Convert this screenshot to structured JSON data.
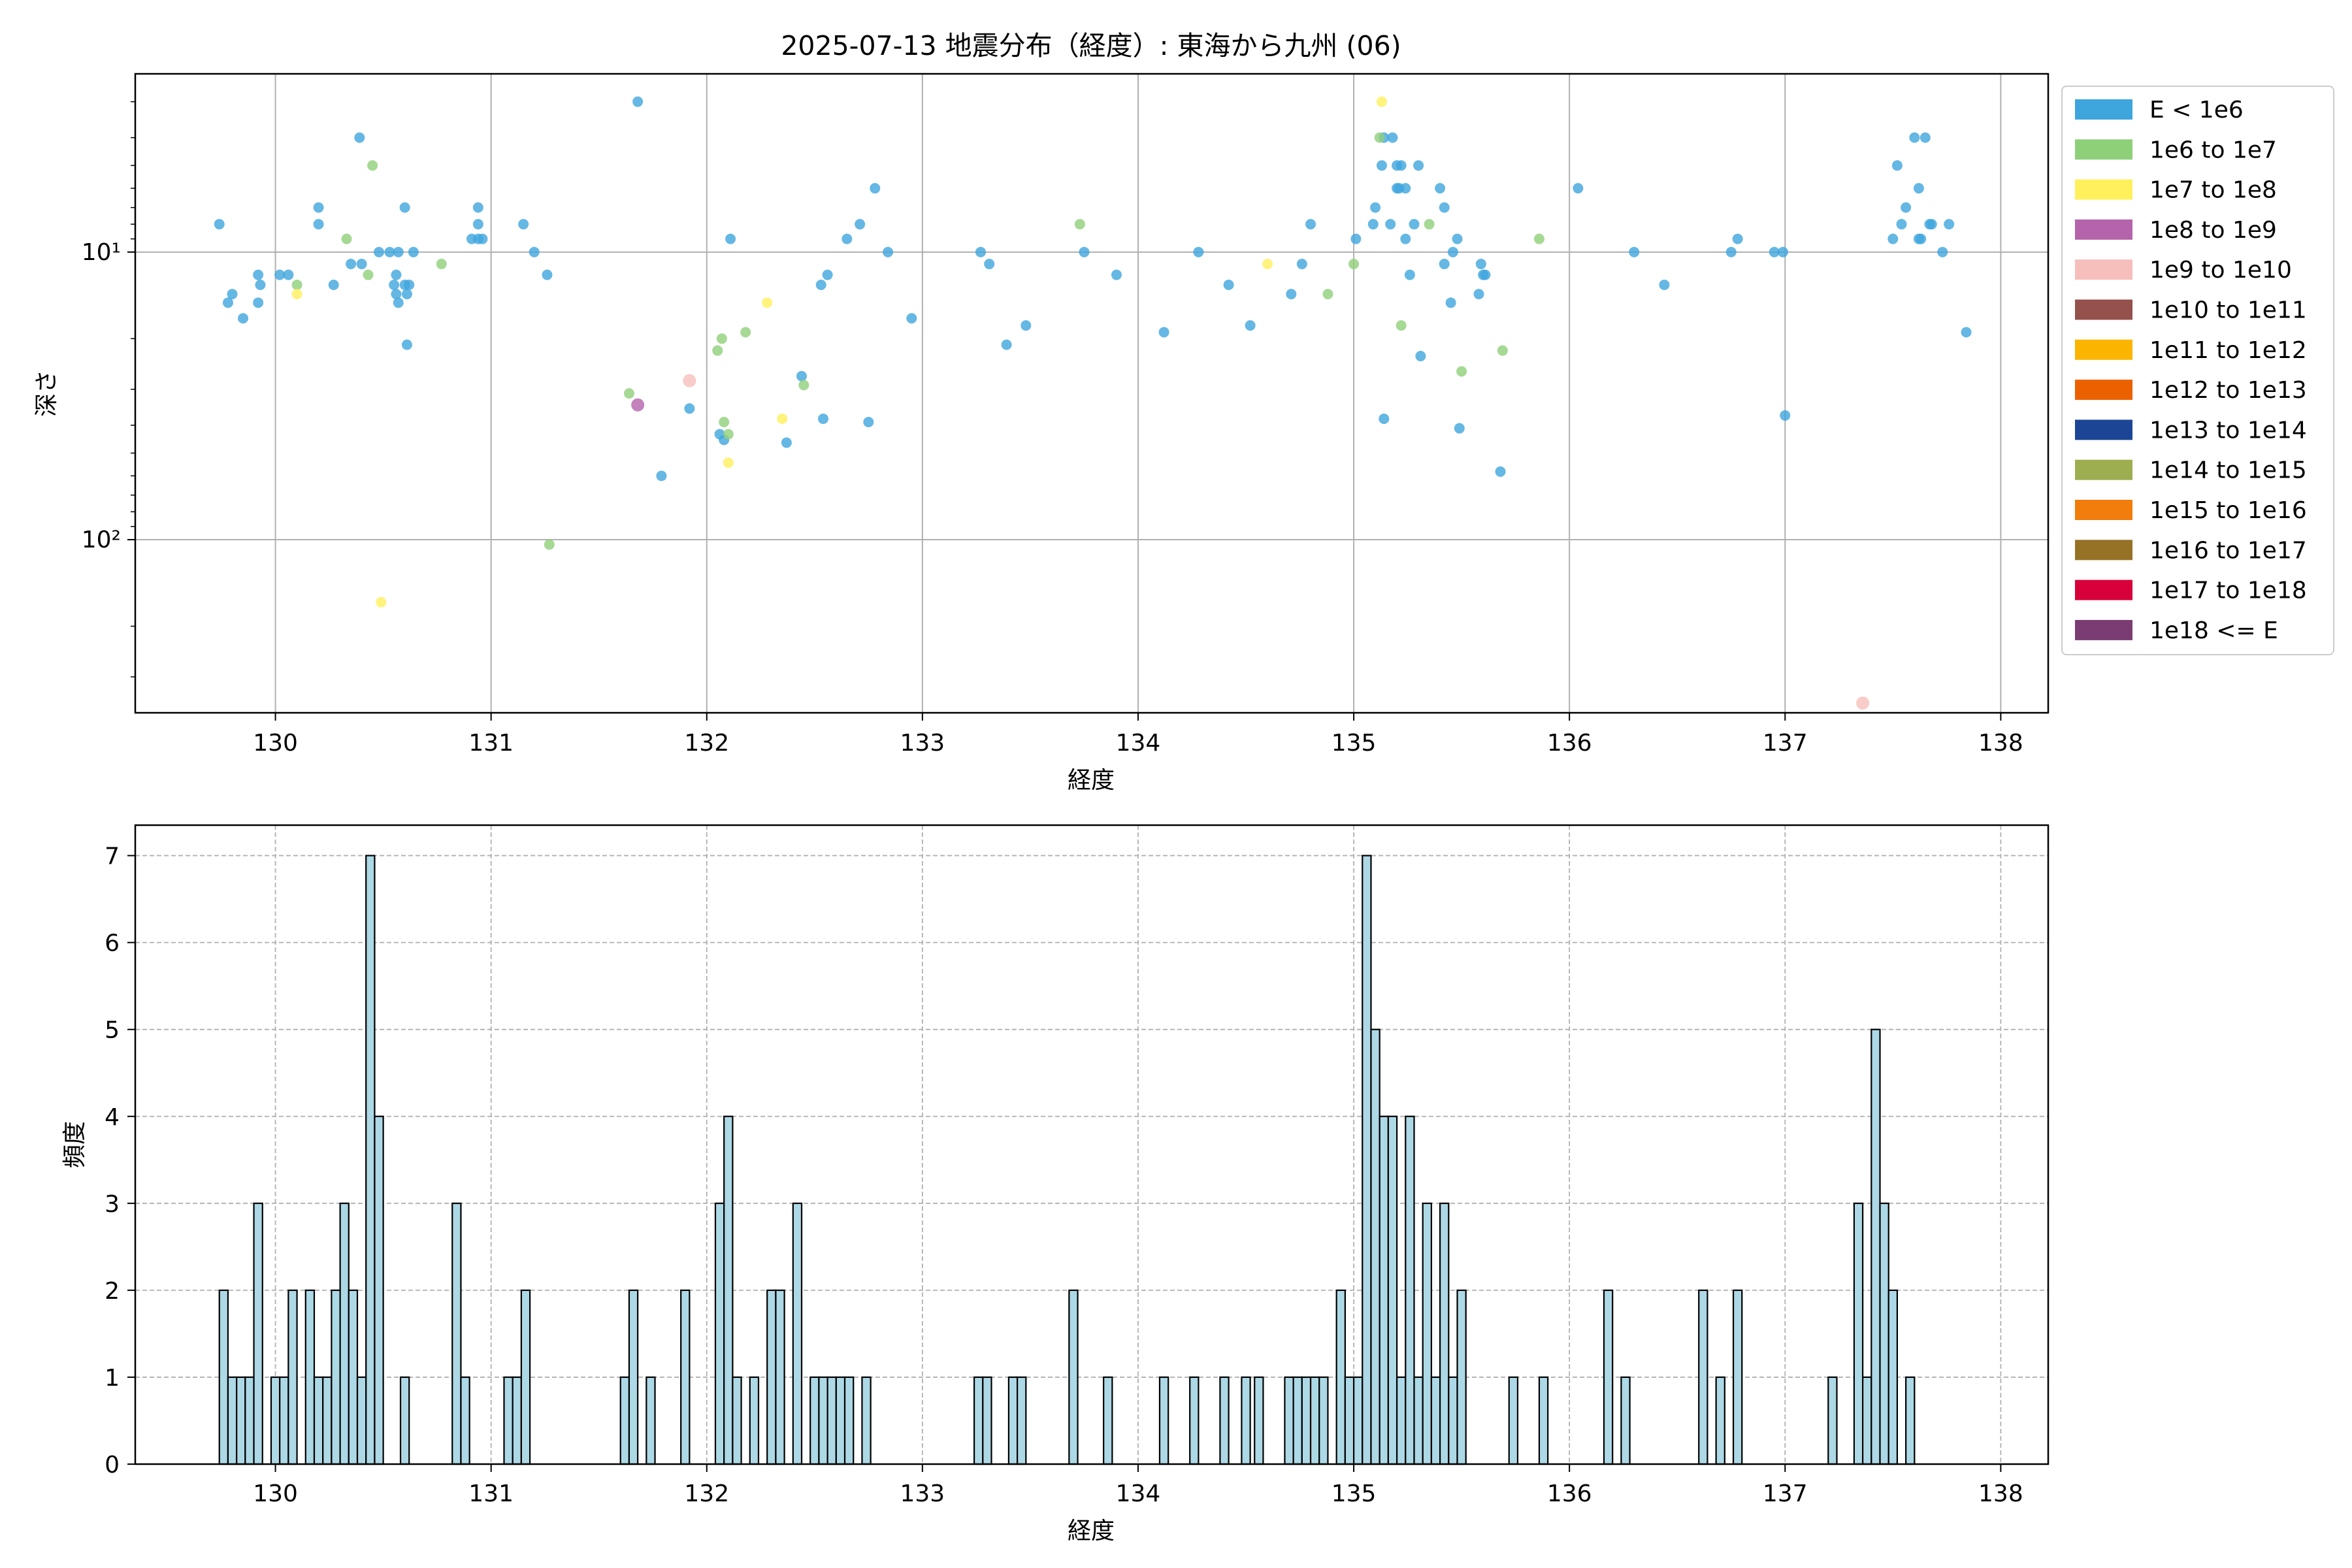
{
  "title": "2025-07-13 地震分布（経度）: 東海から九州 (06)",
  "legend": {
    "placement": "outside-right",
    "entries": [
      {
        "label": "E < 1e6",
        "color": "#3ea5dd"
      },
      {
        "label": "1e6 to 1e7",
        "color": "#8ecf79"
      },
      {
        "label": "1e7 to 1e8",
        "color": "#fff05c"
      },
      {
        "label": "1e8 to 1e9",
        "color": "#b564ab"
      },
      {
        "label": "1e9 to 1e10",
        "color": "#f6bfbc"
      },
      {
        "label": "1e10 to 1e11",
        "color": "#95514b"
      },
      {
        "label": "1e11 to 1e12",
        "color": "#fbb500"
      },
      {
        "label": "1e12 to 1e13",
        "color": "#eb6100"
      },
      {
        "label": "1e13 to 1e14",
        "color": "#1c4595"
      },
      {
        "label": "1e14 to 1e15",
        "color": "#9cae4f"
      },
      {
        "label": "1e15 to 1e16",
        "color": "#f07d0c"
      },
      {
        "label": "1e16 to 1e17",
        "color": "#967226"
      },
      {
        "label": "1e17 to 1e18",
        "color": "#d7003a"
      },
      {
        "label": "1e18 <= E",
        "color": "#7a3c72"
      }
    ]
  },
  "chart_data": [
    {
      "type": "scatter",
      "xlabel": "経度",
      "ylabel": "深さ",
      "xlim": [
        129.35,
        138.22
      ],
      "ylim": [
        400,
        2.4
      ],
      "yscale": "log-inverted",
      "grid": true,
      "xticks": [
        130,
        131,
        132,
        133,
        134,
        135,
        136,
        137,
        138
      ],
      "yticks": [
        {
          "value": 10,
          "label": "10¹"
        },
        {
          "value": 100,
          "label": "10²"
        }
      ],
      "series": [
        {
          "class": 0,
          "points": [
            [
              129.74,
              8
            ],
            [
              129.8,
              14
            ],
            [
              129.78,
              15
            ],
            [
              129.85,
              17
            ],
            [
              129.92,
              12
            ],
            [
              129.92,
              15
            ],
            [
              129.93,
              13
            ],
            [
              130.02,
              12
            ],
            [
              130.06,
              12
            ],
            [
              130.2,
              7
            ],
            [
              130.2,
              8
            ],
            [
              130.27,
              13
            ],
            [
              130.35,
              11
            ],
            [
              130.39,
              4
            ],
            [
              130.4,
              11
            ],
            [
              130.48,
              10
            ],
            [
              130.53,
              10
            ],
            [
              130.55,
              13
            ],
            [
              130.56,
              12
            ],
            [
              130.56,
              14
            ],
            [
              130.57,
              15
            ],
            [
              130.57,
              10
            ],
            [
              130.6,
              7
            ],
            [
              130.6,
              13
            ],
            [
              130.61,
              14
            ],
            [
              130.61,
              21
            ],
            [
              130.62,
              13
            ],
            [
              130.64,
              10
            ],
            [
              130.91,
              9
            ],
            [
              130.94,
              9
            ],
            [
              130.94,
              8
            ],
            [
              130.94,
              7
            ],
            [
              130.96,
              9
            ],
            [
              131.15,
              8
            ],
            [
              131.2,
              10
            ],
            [
              131.26,
              12
            ],
            [
              131.68,
              3
            ],
            [
              131.79,
              60
            ],
            [
              131.92,
              35
            ],
            [
              132.06,
              43
            ],
            [
              132.08,
              45
            ],
            [
              132.11,
              9
            ],
            [
              132.37,
              46
            ],
            [
              132.44,
              27
            ],
            [
              132.53,
              13
            ],
            [
              132.54,
              38
            ],
            [
              132.56,
              12
            ],
            [
              132.65,
              9
            ],
            [
              132.71,
              8
            ],
            [
              132.75,
              39
            ],
            [
              132.78,
              6
            ],
            [
              132.84,
              10
            ],
            [
              132.95,
              17
            ],
            [
              133.27,
              10
            ],
            [
              133.31,
              11
            ],
            [
              133.39,
              21
            ],
            [
              133.48,
              18
            ],
            [
              133.75,
              10
            ],
            [
              133.9,
              12
            ],
            [
              134.12,
              19
            ],
            [
              134.28,
              10
            ],
            [
              134.42,
              13
            ],
            [
              134.52,
              18
            ],
            [
              134.71,
              14
            ],
            [
              134.76,
              11
            ],
            [
              134.8,
              8
            ],
            [
              135.01,
              9
            ],
            [
              135.09,
              8
            ],
            [
              135.1,
              7
            ],
            [
              135.13,
              5
            ],
            [
              135.14,
              4
            ],
            [
              135.14,
              38
            ],
            [
              135.17,
              8
            ],
            [
              135.18,
              4
            ],
            [
              135.2,
              5
            ],
            [
              135.2,
              6
            ],
            [
              135.21,
              6
            ],
            [
              135.22,
              5
            ],
            [
              135.24,
              9
            ],
            [
              135.24,
              6
            ],
            [
              135.26,
              12
            ],
            [
              135.28,
              8
            ],
            [
              135.3,
              5
            ],
            [
              135.31,
              23
            ],
            [
              135.4,
              6
            ],
            [
              135.42,
              7
            ],
            [
              135.42,
              11
            ],
            [
              135.45,
              15
            ],
            [
              135.46,
              10
            ],
            [
              135.48,
              9
            ],
            [
              135.49,
              41
            ],
            [
              135.58,
              14
            ],
            [
              135.59,
              11
            ],
            [
              135.6,
              12
            ],
            [
              135.61,
              12
            ],
            [
              135.68,
              58
            ],
            [
              136.04,
              6
            ],
            [
              136.3,
              10
            ],
            [
              136.44,
              13
            ],
            [
              136.75,
              10
            ],
            [
              136.78,
              9
            ],
            [
              136.95,
              10
            ],
            [
              136.99,
              10
            ],
            [
              137.0,
              37
            ],
            [
              137.5,
              9
            ],
            [
              137.52,
              5
            ],
            [
              137.54,
              8
            ],
            [
              137.56,
              7
            ],
            [
              137.6,
              4
            ],
            [
              137.62,
              6
            ],
            [
              137.62,
              9
            ],
            [
              137.63,
              9
            ],
            [
              137.65,
              4
            ],
            [
              137.67,
              8
            ],
            [
              137.68,
              8
            ],
            [
              137.73,
              10
            ],
            [
              137.76,
              8
            ],
            [
              137.84,
              19
            ]
          ]
        },
        {
          "class": 1,
          "points": [
            [
              130.1,
              13
            ],
            [
              130.33,
              9
            ],
            [
              130.43,
              12
            ],
            [
              130.45,
              5
            ],
            [
              130.77,
              11
            ],
            [
              131.27,
              104
            ],
            [
              131.64,
              31
            ],
            [
              132.05,
              22
            ],
            [
              132.07,
              20
            ],
            [
              132.08,
              39
            ],
            [
              132.1,
              43
            ],
            [
              132.18,
              19
            ],
            [
              132.45,
              29
            ],
            [
              133.73,
              8
            ],
            [
              134.88,
              14
            ],
            [
              135.0,
              11
            ],
            [
              135.12,
              4
            ],
            [
              135.22,
              18
            ],
            [
              135.35,
              8
            ],
            [
              135.5,
              26
            ],
            [
              135.69,
              22
            ],
            [
              135.86,
              9
            ]
          ]
        },
        {
          "class": 2,
          "points": [
            [
              130.1,
              14
            ],
            [
              130.49,
              165
            ],
            [
              132.1,
              54
            ],
            [
              132.28,
              15
            ],
            [
              132.35,
              38
            ],
            [
              134.6,
              11
            ],
            [
              135.13,
              3
            ]
          ]
        },
        {
          "class": 3,
          "points": [
            [
              131.68,
              34
            ]
          ]
        },
        {
          "class": 4,
          "points": [
            [
              131.92,
              28
            ],
            [
              137.36,
              370
            ]
          ]
        }
      ]
    },
    {
      "type": "bar",
      "xlabel": "経度",
      "ylabel": "頻度",
      "xlim": [
        129.35,
        138.22
      ],
      "ylim": [
        0,
        7.35
      ],
      "bin_width": 0.04,
      "grid": true,
      "xticks": [
        130,
        131,
        132,
        133,
        134,
        135,
        136,
        137,
        138
      ],
      "yticks": [
        0,
        1,
        2,
        3,
        4,
        5,
        6,
        7
      ],
      "bins": [
        [
          129.74,
          2
        ],
        [
          129.78,
          1
        ],
        [
          129.82,
          1
        ],
        [
          129.86,
          1
        ],
        [
          129.9,
          3
        ],
        [
          129.98,
          1
        ],
        [
          130.02,
          1
        ],
        [
          130.06,
          2
        ],
        [
          130.14,
          2
        ],
        [
          130.18,
          1
        ],
        [
          130.22,
          1
        ],
        [
          130.26,
          2
        ],
        [
          130.3,
          3
        ],
        [
          130.34,
          2
        ],
        [
          130.38,
          1
        ],
        [
          130.42,
          7
        ],
        [
          130.46,
          4
        ],
        [
          130.58,
          1
        ],
        [
          130.82,
          3
        ],
        [
          130.86,
          1
        ],
        [
          131.06,
          1
        ],
        [
          131.1,
          1
        ],
        [
          131.14,
          2
        ],
        [
          131.6,
          1
        ],
        [
          131.64,
          2
        ],
        [
          131.72,
          1
        ],
        [
          131.88,
          2
        ],
        [
          132.04,
          3
        ],
        [
          132.08,
          4
        ],
        [
          132.12,
          1
        ],
        [
          132.2,
          1
        ],
        [
          132.28,
          2
        ],
        [
          132.32,
          2
        ],
        [
          132.4,
          3
        ],
        [
          132.48,
          1
        ],
        [
          132.52,
          1
        ],
        [
          132.56,
          1
        ],
        [
          132.6,
          1
        ],
        [
          132.64,
          1
        ],
        [
          132.72,
          1
        ],
        [
          133.24,
          1
        ],
        [
          133.28,
          1
        ],
        [
          133.4,
          1
        ],
        [
          133.44,
          1
        ],
        [
          133.68,
          2
        ],
        [
          133.84,
          1
        ],
        [
          134.1,
          1
        ],
        [
          134.24,
          1
        ],
        [
          134.38,
          1
        ],
        [
          134.48,
          1
        ],
        [
          134.54,
          1
        ],
        [
          134.68,
          1
        ],
        [
          134.72,
          1
        ],
        [
          134.76,
          1
        ],
        [
          134.8,
          1
        ],
        [
          134.84,
          1
        ],
        [
          134.92,
          2
        ],
        [
          134.96,
          1
        ],
        [
          135.0,
          1
        ],
        [
          135.04,
          7
        ],
        [
          135.08,
          5
        ],
        [
          135.12,
          4
        ],
        [
          135.16,
          4
        ],
        [
          135.2,
          1
        ],
        [
          135.24,
          4
        ],
        [
          135.28,
          1
        ],
        [
          135.32,
          3
        ],
        [
          135.36,
          1
        ],
        [
          135.4,
          3
        ],
        [
          135.44,
          1
        ],
        [
          135.48,
          2
        ],
        [
          135.72,
          1
        ],
        [
          135.86,
          1
        ],
        [
          136.16,
          2
        ],
        [
          136.24,
          1
        ],
        [
          136.6,
          2
        ],
        [
          136.68,
          1
        ],
        [
          136.76,
          2
        ],
        [
          137.2,
          1
        ],
        [
          137.32,
          3
        ],
        [
          137.36,
          1
        ],
        [
          137.4,
          5
        ],
        [
          137.44,
          3
        ],
        [
          137.48,
          2
        ],
        [
          137.56,
          1
        ]
      ]
    }
  ]
}
